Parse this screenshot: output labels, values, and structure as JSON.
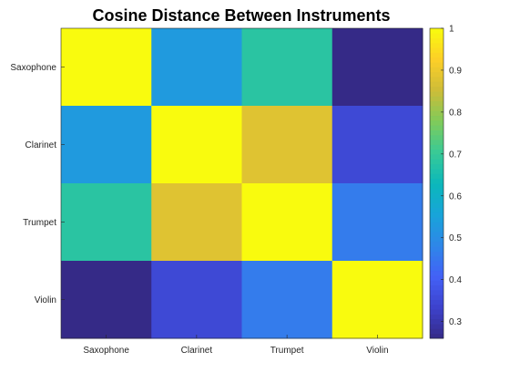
{
  "chart_data": {
    "type": "heatmap",
    "title": "Cosine Distance Between Instruments",
    "xlabel": "",
    "ylabel": "",
    "x_categories": [
      "Saxophone",
      "Clarinet",
      "Trumpet",
      "Violin"
    ],
    "y_categories": [
      "Saxophone",
      "Clarinet",
      "Trumpet",
      "Violin"
    ],
    "values": [
      [
        1.0,
        0.53,
        0.68,
        0.26
      ],
      [
        0.53,
        1.0,
        0.88,
        0.35
      ],
      [
        0.68,
        0.88,
        1.0,
        0.46
      ],
      [
        0.26,
        0.35,
        0.46,
        1.0
      ]
    ],
    "colormap": "parula",
    "color_limits": [
      0.26,
      1.0
    ],
    "colorbar": {
      "ticks": [
        0.3,
        0.4,
        0.5,
        0.6,
        0.7,
        0.8,
        0.9,
        1
      ],
      "tick_labels": [
        "0.3",
        "0.4",
        "0.5",
        "0.6",
        "0.7",
        "0.8",
        "0.9",
        "1"
      ],
      "placement": "right"
    },
    "grid": false
  }
}
